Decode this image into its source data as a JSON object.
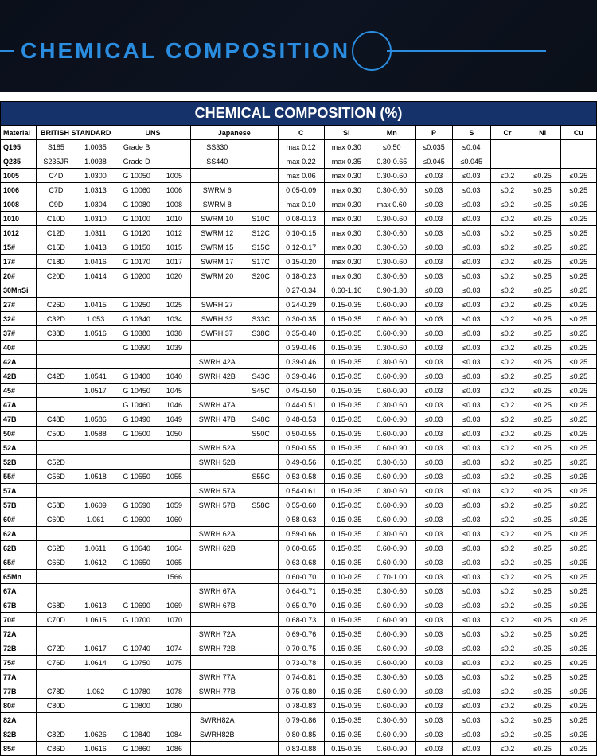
{
  "banner": {
    "title": "Chemical Composition",
    "title_color": "#2b8de0",
    "bg_color": "#0b111e"
  },
  "table": {
    "title": "CHEMICAL COMPOSITION (%)",
    "title_bg": "#15336a",
    "title_fg": "#ffffff",
    "header": {
      "material": "Material",
      "british": "BRITISH STANDARD",
      "uns": "UNS",
      "japanese": "Japanese",
      "c": "C",
      "si": "Si",
      "mn": "Mn",
      "p": "P",
      "s": "S",
      "cr": "Cr",
      "ni": "Ni",
      "cu": "Cu"
    },
    "rows": [
      [
        "Q195",
        "S185",
        "1.0035",
        "Grade B",
        "",
        "SS330",
        "",
        "max 0.12",
        "max 0.30",
        "≤0.50",
        "≤0.035",
        "≤0.04",
        "",
        "",
        ""
      ],
      [
        "Q235",
        "S235JR",
        "1.0038",
        "Grade D",
        "",
        "SS440",
        "",
        "max 0.22",
        "max 0.35",
        "0.30-0.65",
        "≤0.045",
        "≤0.045",
        "",
        "",
        ""
      ],
      [
        "1005",
        "C4D",
        "1.0300",
        "G 10050",
        "1005",
        "",
        "",
        "max 0.06",
        "max 0.30",
        "0.30-0.60",
        "≤0.03",
        "≤0.03",
        "≤0.2",
        "≤0.25",
        "≤0.25"
      ],
      [
        "1006",
        "C7D",
        "1.0313",
        "G 10060",
        "1006",
        "SWRM 6",
        "",
        "0.05-0.09",
        "max 0.30",
        "0.30-0.60",
        "≤0.03",
        "≤0.03",
        "≤0.2",
        "≤0.25",
        "≤0.25"
      ],
      [
        "1008",
        "C9D",
        "1.0304",
        "G 10080",
        "1008",
        "SWRM 8",
        "",
        "max 0.10",
        "max 0.30",
        "max 0.60",
        "≤0.03",
        "≤0.03",
        "≤0.2",
        "≤0.25",
        "≤0.25"
      ],
      [
        "1010",
        "C10D",
        "1.0310",
        "G 10100",
        "1010",
        "SWRM 10",
        "S10C",
        "0.08-0.13",
        "max 0.30",
        "0.30-0.60",
        "≤0.03",
        "≤0.03",
        "≤0.2",
        "≤0.25",
        "≤0.25"
      ],
      [
        "1012",
        "C12D",
        "1.0311",
        "G 10120",
        "1012",
        "SWRM 12",
        "S12C",
        "0.10-0.15",
        "max 0.30",
        "0.30-0.60",
        "≤0.03",
        "≤0.03",
        "≤0.2",
        "≤0.25",
        "≤0.25"
      ],
      [
        "15#",
        "C15D",
        "1.0413",
        "G 10150",
        "1015",
        "SWRM 15",
        "S15C",
        "0.12-0.17",
        "max 0.30",
        "0.30-0.60",
        "≤0.03",
        "≤0.03",
        "≤0.2",
        "≤0.25",
        "≤0.25"
      ],
      [
        "17#",
        "C18D",
        "1.0416",
        "G 10170",
        "1017",
        "SWRM 17",
        "S17C",
        "0.15-0.20",
        "max 0.30",
        "0.30-0.60",
        "≤0.03",
        "≤0.03",
        "≤0.2",
        "≤0.25",
        "≤0.25"
      ],
      [
        "20#",
        "C20D",
        "1.0414",
        "G 10200",
        "1020",
        "SWRM 20",
        "S20C",
        "0.18-0.23",
        "max 0.30",
        "0.30-0.60",
        "≤0.03",
        "≤0.03",
        "≤0.2",
        "≤0.25",
        "≤0.25"
      ],
      [
        "30MnSi",
        "",
        "",
        "",
        "",
        "",
        "",
        "0.27-0.34",
        "0.60-1.10",
        "0.90-1.30",
        "≤0.03",
        "≤0.03",
        "≤0.2",
        "≤0.25",
        "≤0.25"
      ],
      [
        "27#",
        "C26D",
        "1.0415",
        "G 10250",
        "1025",
        "SWRH 27",
        "",
        "0.24-0.29",
        "0.15-0.35",
        "0.60-0.90",
        "≤0.03",
        "≤0.03",
        "≤0.2",
        "≤0.25",
        "≤0.25"
      ],
      [
        "32#",
        "C32D",
        "1.053",
        "G 10340",
        "1034",
        "SWRH 32",
        "S33C",
        "0.30-0.35",
        "0.15-0.35",
        "0.60-0.90",
        "≤0.03",
        "≤0.03",
        "≤0.2",
        "≤0.25",
        "≤0.25"
      ],
      [
        "37#",
        "C38D",
        "1.0516",
        "G 10380",
        "1038",
        "SWRH 37",
        "S38C",
        "0.35-0.40",
        "0.15-0.35",
        "0.60-0.90",
        "≤0.03",
        "≤0.03",
        "≤0.2",
        "≤0.25",
        "≤0.25"
      ],
      [
        "40#",
        "",
        "",
        "G 10390",
        "1039",
        "",
        "",
        "0.39-0.46",
        "0.15-0.35",
        "0.30-0.60",
        "≤0.03",
        "≤0.03",
        "≤0.2",
        "≤0.25",
        "≤0.25"
      ],
      [
        "42A",
        "",
        "",
        "",
        "",
        "SWRH 42A",
        "",
        "0.39-0.46",
        "0.15-0.35",
        "0.30-0.60",
        "≤0.03",
        "≤0.03",
        "≤0.2",
        "≤0.25",
        "≤0.25"
      ],
      [
        "42B",
        "C42D",
        "1.0541",
        "G 10400",
        "1040",
        "SWRH 42B",
        "S43C",
        "0.39-0.46",
        "0.15-0.35",
        "0.60-0.90",
        "≤0.03",
        "≤0.03",
        "≤0.2",
        "≤0.25",
        "≤0.25"
      ],
      [
        "45#",
        "",
        "1.0517",
        "G 10450",
        "1045",
        "",
        "S45C",
        "0.45-0.50",
        "0.15-0.35",
        "0.60-0.90",
        "≤0.03",
        "≤0.03",
        "≤0.2",
        "≤0.25",
        "≤0.25"
      ],
      [
        "47A",
        "",
        "",
        "G 10460",
        "1046",
        "SWRH 47A",
        "",
        "0.44-0.51",
        "0.15-0.35",
        "0.30-0.60",
        "≤0.03",
        "≤0.03",
        "≤0.2",
        "≤0.25",
        "≤0.25"
      ],
      [
        "47B",
        "C48D",
        "1.0586",
        "G 10490",
        "1049",
        "SWRH 47B",
        "S48C",
        "0.48-0.53",
        "0.15-0.35",
        "0.60-0.90",
        "≤0.03",
        "≤0.03",
        "≤0.2",
        "≤0.25",
        "≤0.25"
      ],
      [
        "50#",
        "C50D",
        "1.0588",
        "G 10500",
        "1050",
        "",
        "S50C",
        "0.50-0.55",
        "0.15-0.35",
        "0.60-0.90",
        "≤0.03",
        "≤0.03",
        "≤0.2",
        "≤0.25",
        "≤0.25"
      ],
      [
        "52A",
        "",
        "",
        "",
        "",
        "SWRH 52A",
        "",
        "0.50-0.55",
        "0.15-0.35",
        "0.60-0.90",
        "≤0.03",
        "≤0.03",
        "≤0.2",
        "≤0.25",
        "≤0.25"
      ],
      [
        "52B",
        "C52D",
        "",
        "",
        "",
        "SWRH 52B",
        "",
        "0.49-0.56",
        "0.15-0.35",
        "0.30-0.60",
        "≤0.03",
        "≤0.03",
        "≤0.2",
        "≤0.25",
        "≤0.25"
      ],
      [
        "55#",
        "C56D",
        "1.0518",
        "G 10550",
        "1055",
        "",
        "S55C",
        "0.53-0.58",
        "0.15-0.35",
        "0.60-0.90",
        "≤0.03",
        "≤0.03",
        "≤0.2",
        "≤0.25",
        "≤0.25"
      ],
      [
        "57A",
        "",
        "",
        "",
        "",
        "SWRH 57A",
        "",
        "0.54-0.61",
        "0.15-0.35",
        "0.30-0.60",
        "≤0.03",
        "≤0.03",
        "≤0.2",
        "≤0.25",
        "≤0.25"
      ],
      [
        "57B",
        "C58D",
        "1.0609",
        "G 10590",
        "1059",
        "SWRH 57B",
        "S58C",
        "0.55-0.60",
        "0.15-0.35",
        "0.60-0.90",
        "≤0.03",
        "≤0.03",
        "≤0.2",
        "≤0.25",
        "≤0.25"
      ],
      [
        "60#",
        "C60D",
        "1.061",
        "G 10600",
        "1060",
        "",
        "",
        "0.58-0.63",
        "0.15-0.35",
        "0.60-0.90",
        "≤0.03",
        "≤0.03",
        "≤0.2",
        "≤0.25",
        "≤0.25"
      ],
      [
        "62A",
        "",
        "",
        "",
        "",
        "SWRH 62A",
        "",
        "0.59-0.66",
        "0.15-0.35",
        "0.30-0.60",
        "≤0.03",
        "≤0.03",
        "≤0.2",
        "≤0.25",
        "≤0.25"
      ],
      [
        "62B",
        "C62D",
        "1.0611",
        "G 10640",
        "1064",
        "SWRH 62B",
        "",
        "0.60-0.65",
        "0.15-0.35",
        "0.60-0.90",
        "≤0.03",
        "≤0.03",
        "≤0.2",
        "≤0.25",
        "≤0.25"
      ],
      [
        "65#",
        "C66D",
        "1.0612",
        "G 10650",
        "1065",
        "",
        "",
        "0.63-0.68",
        "0.15-0.35",
        "0.60-0.90",
        "≤0.03",
        "≤0.03",
        "≤0.2",
        "≤0.25",
        "≤0.25"
      ],
      [
        "65Mn",
        "",
        "",
        "",
        "1566",
        "",
        "",
        "0.60-0.70",
        "0.10-0.25",
        "0.70-1.00",
        "≤0.03",
        "≤0.03",
        "≤0.2",
        "≤0.25",
        "≤0.25"
      ],
      [
        "67A",
        "",
        "",
        "",
        "",
        "SWRH 67A",
        "",
        "0.64-0.71",
        "0.15-0.35",
        "0.30-0.60",
        "≤0.03",
        "≤0.03",
        "≤0.2",
        "≤0.25",
        "≤0.25"
      ],
      [
        "67B",
        "C68D",
        "1.0613",
        "G 10690",
        "1069",
        "SWRH 67B",
        "",
        "0.65-0.70",
        "0.15-0.35",
        "0.60-0.90",
        "≤0.03",
        "≤0.03",
        "≤0.2",
        "≤0.25",
        "≤0.25"
      ],
      [
        "70#",
        "C70D",
        "1.0615",
        "G 10700",
        "1070",
        "",
        "",
        "0.68-0.73",
        "0.15-0.35",
        "0.60-0.90",
        "≤0.03",
        "≤0.03",
        "≤0.2",
        "≤0.25",
        "≤0.25"
      ],
      [
        "72A",
        "",
        "",
        "",
        "",
        "SWRH 72A",
        "",
        "0.69-0.76",
        "0.15-0.35",
        "0.60-0.90",
        "≤0.03",
        "≤0.03",
        "≤0.2",
        "≤0.25",
        "≤0.25"
      ],
      [
        "72B",
        "C72D",
        "1.0617",
        "G 10740",
        "1074",
        "SWRH 72B",
        "",
        "0.70-0.75",
        "0.15-0.35",
        "0.60-0.90",
        "≤0.03",
        "≤0.03",
        "≤0.2",
        "≤0.25",
        "≤0.25"
      ],
      [
        "75#",
        "C76D",
        "1.0614",
        "G 10750",
        "1075",
        "",
        "",
        "0.73-0.78",
        "0.15-0.35",
        "0.60-0.90",
        "≤0.03",
        "≤0.03",
        "≤0.2",
        "≤0.25",
        "≤0.25"
      ],
      [
        "77A",
        "",
        "",
        "",
        "",
        "SWRH 77A",
        "",
        "0.74-0.81",
        "0.15-0.35",
        "0.30-0.60",
        "≤0.03",
        "≤0.03",
        "≤0.2",
        "≤0.25",
        "≤0.25"
      ],
      [
        "77B",
        "C78D",
        "1.062",
        "G 10780",
        "1078",
        "SWRH 77B",
        "",
        "0.75-0.80",
        "0.15-0.35",
        "0.60-0.90",
        "≤0.03",
        "≤0.03",
        "≤0.2",
        "≤0.25",
        "≤0.25"
      ],
      [
        "80#",
        "C80D",
        "",
        "G 10800",
        "1080",
        "",
        "",
        "0.78-0.83",
        "0.15-0.35",
        "0.60-0.90",
        "≤0.03",
        "≤0.03",
        "≤0.2",
        "≤0.25",
        "≤0.25"
      ],
      [
        "82A",
        "",
        "",
        "",
        "",
        "SWRH82A",
        "",
        "0.79-0.86",
        "0.15-0.35",
        "0.30-0.60",
        "≤0.03",
        "≤0.03",
        "≤0.2",
        "≤0.25",
        "≤0.25"
      ],
      [
        "82B",
        "C82D",
        "1.0626",
        "G 10840",
        "1084",
        "SWRH82B",
        "",
        "0.80-0.85",
        "0.15-0.35",
        "0.60-0.90",
        "≤0.03",
        "≤0.03",
        "≤0.2",
        "≤0.25",
        "≤0.25"
      ],
      [
        "85#",
        "C86D",
        "1.0616",
        "G 10860",
        "1086",
        "",
        "",
        "0.83-0.88",
        "0.15-0.35",
        "0.60-0.90",
        "≤0.03",
        "≤0.03",
        "≤0.2",
        "≤0.25",
        "≤0.25"
      ]
    ]
  }
}
